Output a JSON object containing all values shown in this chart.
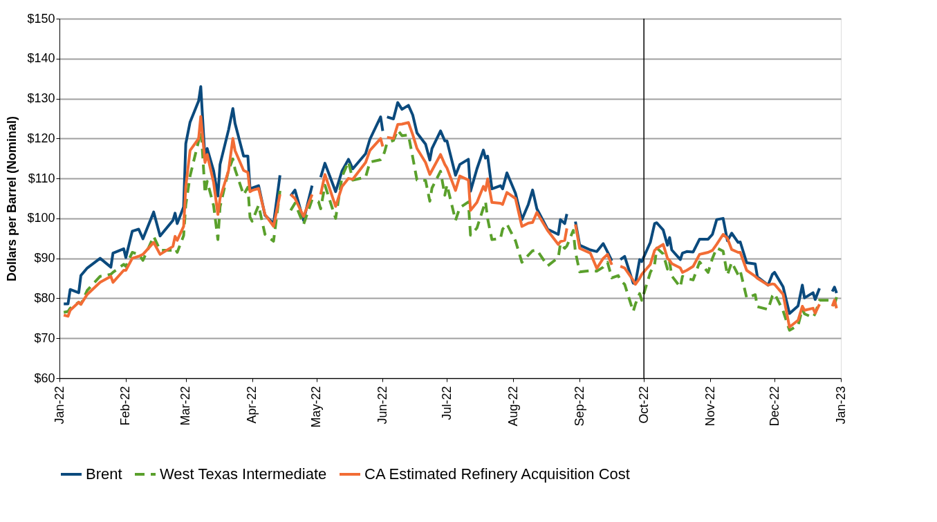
{
  "chart_data": {
    "type": "line",
    "ylabel": "Dollars per Barrel (Nominal)",
    "x": [
      "2022-01-03",
      "2022-01-05",
      "2022-01-06",
      "2022-01-10",
      "2022-01-11",
      "2022-01-14",
      "2022-01-20",
      "2022-01-25",
      "2022-01-26",
      "2022-01-31",
      "2022-02-01",
      "2022-02-04",
      "2022-02-07",
      "2022-02-09",
      "2022-02-14",
      "2022-02-17",
      "2022-02-23",
      "2022-02-24",
      "2022-02-25",
      "2022-02-28",
      "2022-03-01",
      "2022-03-03",
      "2022-03-07",
      "2022-03-08",
      "2022-03-10",
      "2022-03-11",
      "2022-03-14",
      "2022-03-16",
      "2022-03-17",
      "2022-03-21",
      "2022-03-23",
      "2022-03-24",
      "2022-03-28",
      "2022-03-30",
      "2022-03-31",
      "2022-04-01",
      "2022-04-04",
      "2022-04-07",
      "2022-04-11",
      "2022-04-14",
      "2022-04-15",
      "2022-04-19",
      "2022-04-21",
      "2022-04-25",
      "2022-04-29",
      "2022-05-02",
      "2022-05-03",
      "2022-05-05",
      "2022-05-10",
      "2022-05-13",
      "2022-05-16",
      "2022-05-18",
      "2022-05-24",
      "2022-05-26",
      "2022-05-31",
      "2022-06-01",
      "2022-06-02",
      "2022-06-03",
      "2022-06-06",
      "2022-06-08",
      "2022-06-10",
      "2022-06-13",
      "2022-06-15",
      "2022-06-17",
      "2022-06-21",
      "2022-06-23",
      "2022-06-24",
      "2022-06-28",
      "2022-06-30",
      "2022-07-01",
      "2022-07-05",
      "2022-07-07",
      "2022-07-11",
      "2022-07-12",
      "2022-07-15",
      "2022-07-18",
      "2022-07-19",
      "2022-07-20",
      "2022-07-22",
      "2022-07-26",
      "2022-07-27",
      "2022-07-29",
      "2022-08-02",
      "2022-08-05",
      "2022-08-08",
      "2022-08-10",
      "2022-08-12",
      "2022-08-17",
      "2022-08-22",
      "2022-08-23",
      "2022-08-25",
      "2022-08-26",
      "2022-08-29",
      "2022-08-30",
      "2022-09-01",
      "2022-09-06",
      "2022-09-09",
      "2022-09-12",
      "2022-09-14",
      "2022-09-16",
      "2022-09-19",
      "2022-09-20",
      "2022-09-22",
      "2022-09-26",
      "2022-09-27",
      "2022-09-29",
      "2022-09-30",
      "2022-10-04",
      "2022-10-06",
      "2022-10-07",
      "2022-10-10",
      "2022-10-12",
      "2022-10-13",
      "2022-10-14",
      "2022-10-18",
      "2022-10-19",
      "2022-10-21",
      "2022-10-24",
      "2022-10-27",
      "2022-10-31",
      "2022-11-02",
      "2022-11-04",
      "2022-11-07",
      "2022-11-09",
      "2022-11-11",
      "2022-11-14",
      "2022-11-15",
      "2022-11-18",
      "2022-11-22",
      "2022-11-23",
      "2022-11-28",
      "2022-11-30",
      "2022-12-01",
      "2022-12-05",
      "2022-12-08",
      "2022-12-12",
      "2022-12-14",
      "2022-12-15",
      "2022-12-19",
      "2022-12-20",
      "2022-12-22",
      "2022-12-27",
      "2022-12-28",
      "2022-12-29",
      "2022-12-30"
    ],
    "series": [
      {
        "name": "Brent",
        "color": "#0b4a7d",
        "line_style": "solid",
        "values": [
          78.6,
          78.6,
          82.2,
          81.4,
          85.7,
          87.6,
          90.0,
          87.8,
          91.3,
          92.4,
          90.2,
          96.8,
          97.3,
          94.9,
          101.6,
          95.6,
          99.5,
          101.3,
          98.7,
          102.9,
          118.7,
          124.1,
          129.4,
          133.0,
          114.6,
          117.5,
          111.9,
          105.6,
          113.5,
          122.2,
          127.5,
          123.8,
          115.6,
          115.6,
          107.5,
          107.6,
          108.2,
          100.8,
          98.7,
          110.8,
          null,
          105.6,
          107.1,
          99.5,
          108.2,
          null,
          110.3,
          113.8,
          106.7,
          111.9,
          114.8,
          112.4,
          116.2,
          119.8,
          125.4,
          121.9,
          null,
          125.4,
          124.9,
          129.0,
          127.3,
          128.3,
          125.9,
          121.4,
          118.6,
          114.6,
          117.5,
          121.9,
          119.4,
          119.4,
          110.8,
          113.5,
          114.8,
          106.8,
          112.4,
          117.1,
          115.1,
          115.6,
          107.4,
          108.2,
          107.4,
          111.4,
          106.3,
          99.7,
          103.5,
          107.1,
          102.4,
          97.3,
          96.0,
          99.7,
          98.7,
          101.1,
          null,
          99.2,
          93.3,
          92.1,
          91.7,
          93.7,
          91.6,
          89.4,
          null,
          89.7,
          90.5,
          83.8,
          83.7,
          89.7,
          89.2,
          94.0,
          98.7,
          98.9,
          97.1,
          93.3,
          95.2,
          92.1,
          89.7,
          91.3,
          91.7,
          91.6,
          94.8,
          94.8,
          96.0,
          99.7,
          100.0,
          94.4,
          96.3,
          94.0,
          94.1,
          88.9,
          88.6,
          85.4,
          83.3,
          86.0,
          86.5,
          82.9,
          76.2,
          78.1,
          83.3,
          80.1,
          81.4,
          79.7,
          82.5,
          null,
          81.7,
          82.8,
          81.3
        ]
      },
      {
        "name": "West Texas Intermediate",
        "color": "#5aa02c",
        "line_style": "dashed",
        "values": [
          76.5,
          76.7,
          77.5,
          79.0,
          78.5,
          82.0,
          85.5,
          86.0,
          86.5,
          88.5,
          88.0,
          91.5,
          91.0,
          89.5,
          95.5,
          92.0,
          92.0,
          92.5,
          91.5,
          95.7,
          103.4,
          110.6,
          119.4,
          123.7,
          106.3,
          109.3,
          103.2,
          94.7,
          102.9,
          112.1,
          114.9,
          112.3,
          105.9,
          107.8,
          100.3,
          99.3,
          103.3,
          96.0,
          94.3,
          106.9,
          null,
          102.0,
          103.8,
          98.5,
          104.7,
          104.2,
          102.4,
          108.3,
          100.0,
          110.5,
          114.2,
          109.6,
          110.3,
          114.1,
          114.7,
          115.3,
          116.9,
          118.9,
          119.5,
          122.1,
          120.7,
          120.9,
          115.3,
          109.6,
          109.5,
          104.3,
          107.6,
          111.8,
          105.8,
          108.4,
          99.5,
          102.7,
          104.1,
          95.8,
          97.6,
          102.6,
          104.2,
          99.9,
          94.7,
          95.0,
          97.3,
          98.6,
          94.4,
          89.0,
          90.8,
          91.9,
          92.1,
          88.1,
          90.2,
          93.7,
          92.5,
          93.1,
          97.0,
          91.6,
          86.6,
          86.9,
          86.8,
          87.8,
          89.0,
          85.1,
          85.7,
          84.5,
          83.5,
          76.7,
          78.5,
          81.2,
          79.5,
          86.5,
          88.5,
          92.6,
          91.1,
          87.3,
          89.1,
          85.6,
          82.8,
          85.5,
          85.0,
          84.6,
          89.1,
          86.5,
          90.0,
          92.6,
          91.8,
          85.8,
          89.0,
          85.9,
          86.9,
          80.1,
          80.9,
          77.9,
          77.2,
          80.6,
          81.2,
          76.9,
          72.0,
          73.2,
          77.3,
          76.1,
          75.2,
          76.2,
          79.5,
          79.5,
          78.9,
          78.4,
          80.3
        ]
      },
      {
        "name": "CA Estimated Refinery Acquisition Cost",
        "color": "#f26c35",
        "line_style": "solid",
        "values": [
          75.8,
          75.5,
          77.0,
          79.0,
          78.5,
          81.0,
          84.0,
          85.5,
          84.0,
          87.0,
          87.0,
          90.0,
          90.5,
          91.0,
          94.0,
          91.0,
          93.0,
          95.5,
          94.5,
          98.0,
          108.0,
          117.0,
          120.0,
          125.5,
          114.0,
          116.0,
          109.0,
          101.0,
          105.0,
          112.0,
          120.0,
          117.0,
          112.0,
          111.5,
          106.7,
          107.0,
          107.5,
          101.0,
          98.0,
          106.0,
          null,
          106.0,
          105.0,
          100.5,
          106.0,
          null,
          106.0,
          111.0,
          103.0,
          108.0,
          110.0,
          109.8,
          114.0,
          117.0,
          120.0,
          118.0,
          null,
          120.3,
          120.0,
          123.5,
          123.6,
          124.0,
          121.0,
          117.5,
          114.0,
          111.0,
          112.0,
          116.0,
          113.5,
          112.6,
          107.0,
          110.6,
          109.6,
          102.0,
          104.0,
          108.0,
          107.0,
          109.9,
          104.0,
          103.8,
          103.5,
          106.5,
          105.0,
          98.0,
          98.8,
          99.0,
          101.5,
          97.0,
          93.5,
          94.2,
          94.5,
          97.5,
          null,
          98.5,
          92.5,
          91.3,
          87.5,
          90.0,
          91.0,
          88.4,
          null,
          88.0,
          87.6,
          84.5,
          83.5,
          85.0,
          86.0,
          88.5,
          92.0,
          92.5,
          93.5,
          90.0,
          89.5,
          88.7,
          87.6,
          86.5,
          87.0,
          88.0,
          91.0,
          91.5,
          92.0,
          93.5,
          96.0,
          95.0,
          92.2,
          91.5,
          91.5,
          87.0,
          85.5,
          85.0,
          83.3,
          83.6,
          83.5,
          81.0,
          72.8,
          74.5,
          78.0,
          77.0,
          77.5,
          76.3,
          78.5,
          null,
          78.0,
          79.5,
          77.5
        ]
      }
    ],
    "xlim": [
      "2022-01-01",
      "2023-01-01"
    ],
    "xticks": [
      {
        "value": "2022-01-01",
        "label": "Jan-22"
      },
      {
        "value": "2022-02-01",
        "label": "Feb-22"
      },
      {
        "value": "2022-03-01",
        "label": "Mar-22"
      },
      {
        "value": "2022-04-01",
        "label": "Apr-22"
      },
      {
        "value": "2022-05-01",
        "label": "May-22"
      },
      {
        "value": "2022-06-01",
        "label": "Jun-22"
      },
      {
        "value": "2022-07-01",
        "label": "Jul-22"
      },
      {
        "value": "2022-08-01",
        "label": "Aug-22"
      },
      {
        "value": "2022-09-01",
        "label": "Sep-22"
      },
      {
        "value": "2022-10-01",
        "label": "Oct-22"
      },
      {
        "value": "2022-11-01",
        "label": "Nov-22"
      },
      {
        "value": "2022-12-01",
        "label": "Dec-22"
      },
      {
        "value": "2023-01-01",
        "label": "Jan-23"
      }
    ],
    "ylim": [
      60,
      150
    ],
    "yticks": [
      {
        "value": 60,
        "label": "$60"
      },
      {
        "value": 70,
        "label": "$70"
      },
      {
        "value": 80,
        "label": "$80"
      },
      {
        "value": 90,
        "label": "$90"
      },
      {
        "value": 100,
        "label": "$100"
      },
      {
        "value": 110,
        "label": "$110"
      },
      {
        "value": 120,
        "label": "$120"
      },
      {
        "value": 130,
        "label": "$130"
      },
      {
        "value": 140,
        "label": "$140"
      },
      {
        "value": 150,
        "label": "$150"
      }
    ],
    "ref_lines": [
      {
        "axis": "x",
        "value": "2022-10-01",
        "color": "#000000"
      }
    ],
    "grid": "y",
    "legend": "bottom",
    "marker": "none"
  }
}
